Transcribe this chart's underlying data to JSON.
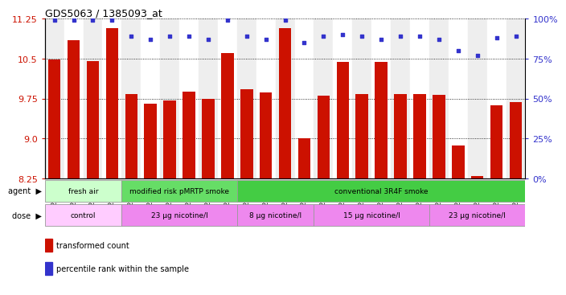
{
  "title": "GDS5063 / 1385093_at",
  "samples": [
    "GSM1217206",
    "GSM1217207",
    "GSM1217208",
    "GSM1217209",
    "GSM1217210",
    "GSM1217211",
    "GSM1217212",
    "GSM1217213",
    "GSM1217214",
    "GSM1217215",
    "GSM1217221",
    "GSM1217222",
    "GSM1217223",
    "GSM1217224",
    "GSM1217225",
    "GSM1217216",
    "GSM1217217",
    "GSM1217218",
    "GSM1217219",
    "GSM1217220",
    "GSM1217226",
    "GSM1217227",
    "GSM1217228",
    "GSM1217229",
    "GSM1217230"
  ],
  "bar_values": [
    10.49,
    10.85,
    10.46,
    11.08,
    9.83,
    9.66,
    9.71,
    9.88,
    9.75,
    10.61,
    9.93,
    9.87,
    11.08,
    9.01,
    9.81,
    10.44,
    9.83,
    10.44,
    9.84,
    9.83,
    9.82,
    8.87,
    8.29,
    9.63,
    9.68
  ],
  "percentile_values": [
    99,
    99,
    99,
    99,
    89,
    87,
    89,
    89,
    87,
    99,
    89,
    87,
    99,
    85,
    89,
    90,
    89,
    87,
    89,
    89,
    87,
    80,
    77,
    88,
    89
  ],
  "bar_color": "#cc1100",
  "percentile_color": "#3333cc",
  "ymin": 8.25,
  "ymax": 11.25,
  "yticks_left": [
    8.25,
    9.0,
    9.75,
    10.5,
    11.25
  ],
  "yticks_right_pct": [
    0,
    25,
    50,
    75,
    100
  ],
  "agent_groups": [
    {
      "label": "fresh air",
      "start": 0,
      "end": 4,
      "color": "#ccffcc"
    },
    {
      "label": "modified risk pMRTP smoke",
      "start": 4,
      "end": 10,
      "color": "#66dd66"
    },
    {
      "label": "conventional 3R4F smoke",
      "start": 10,
      "end": 25,
      "color": "#44cc44"
    }
  ],
  "dose_groups": [
    {
      "label": "control",
      "start": 0,
      "end": 4,
      "color": "#ffccff"
    },
    {
      "label": "23 μg nicotine/l",
      "start": 4,
      "end": 10,
      "color": "#ee88ee"
    },
    {
      "label": "8 μg nicotine/l",
      "start": 10,
      "end": 14,
      "color": "#ee88ee"
    },
    {
      "label": "15 μg nicotine/l",
      "start": 14,
      "end": 20,
      "color": "#ee88ee"
    },
    {
      "label": "23 μg nicotine/l",
      "start": 20,
      "end": 25,
      "color": "#ee88ee"
    }
  ],
  "legend_items": [
    {
      "label": "transformed count",
      "color": "#cc1100"
    },
    {
      "label": "percentile rank within the sample",
      "color": "#3333cc"
    }
  ]
}
